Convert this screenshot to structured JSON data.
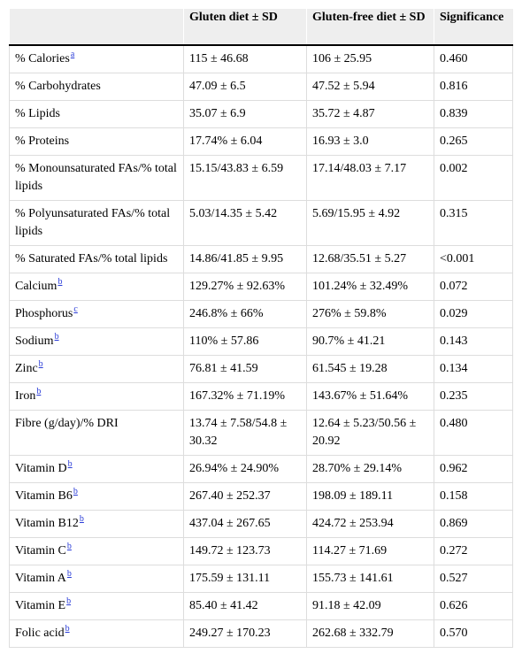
{
  "table": {
    "columns": [
      "Gluten diet ± SD",
      "Gluten-free diet ± SD",
      "Significance"
    ],
    "rows": [
      {
        "label": "% Calories",
        "note": "a",
        "cells": [
          "115 ± 46.68",
          "106 ± 25.95",
          "0.460"
        ]
      },
      {
        "label": "% Carbohydrates",
        "cells": [
          "47.09 ± 6.5",
          "47.52 ± 5.94",
          "0.816"
        ]
      },
      {
        "label": "% Lipids",
        "cells": [
          "35.07 ± 6.9",
          "35.72 ± 4.87",
          "0.839"
        ]
      },
      {
        "label": "% Proteins",
        "cells": [
          "17.74% ± 6.04",
          "16.93 ± 3.0",
          "0.265"
        ]
      },
      {
        "label": "% Monounsaturated FAs/% total lipids",
        "cells": [
          "15.15/43.83 ± 6.59",
          "17.14/48.03 ± 7.17",
          "0.002"
        ]
      },
      {
        "label": "% Polyunsaturated FAs/% total lipids",
        "cells": [
          "5.03/14.35 ± 5.42",
          "5.69/15.95 ± 4.92",
          "0.315"
        ]
      },
      {
        "label": "% Saturated FAs/% total lipids",
        "cells": [
          "14.86/41.85 ± 9.95",
          "12.68/35.51 ± 5.27",
          "<0.001"
        ]
      },
      {
        "label": "Calcium",
        "note": "b",
        "cells": [
          "129.27% ± 92.63%",
          "101.24% ± 32.49%",
          "0.072"
        ]
      },
      {
        "label": "Phosphorus",
        "note": "c",
        "cells": [
          "246.8% ± 66%",
          "276% ± 59.8%",
          "0.029"
        ]
      },
      {
        "label": "Sodium",
        "note": "b",
        "cells": [
          "110% ± 57.86",
          "90.7% ± 41.21",
          "0.143"
        ]
      },
      {
        "label": "Zinc",
        "note": "b",
        "cells": [
          "76.81 ± 41.59",
          "61.545 ± 19.28",
          "0.134"
        ]
      },
      {
        "label": "Iron",
        "note": "b",
        "cells": [
          "167.32% ± 71.19%",
          "143.67% ± 51.64%",
          "0.235"
        ]
      },
      {
        "label": "Fibre (g/day)/% DRI",
        "cells": [
          "13.74 ± 7.58/54.8 ± 30.32",
          "12.64 ± 5.23/50.56 ± 20.92",
          "0.480"
        ]
      },
      {
        "label": "Vitamin D",
        "note": "b",
        "cells": [
          "26.94% ± 24.90%",
          "28.70% ± 29.14%",
          "0.962"
        ]
      },
      {
        "label": "Vitamin B6",
        "note": "b",
        "cells": [
          "267.40 ± 252.37",
          "198.09 ± 189.11",
          "0.158"
        ]
      },
      {
        "label": "Vitamin B12",
        "note": "b",
        "cells": [
          "437.04 ± 267.65",
          "424.72 ± 253.94",
          "0.869"
        ]
      },
      {
        "label": "Vitamin C",
        "note": "b",
        "cells": [
          "149.72 ± 123.73",
          "114.27 ± 71.69",
          "0.272"
        ]
      },
      {
        "label": "Vitamin A",
        "note": "b",
        "cells": [
          "175.59 ± 131.11",
          "155.73 ± 141.61",
          "0.527"
        ]
      },
      {
        "label": "Vitamin E",
        "note": "b",
        "cells": [
          "85.40 ± 41.42",
          "91.18 ± 42.09",
          "0.626"
        ]
      },
      {
        "label": "Folic acid",
        "note": "b",
        "cells": [
          "249.27 ± 170.23",
          "262.68 ± 332.79",
          "0.570"
        ]
      }
    ]
  }
}
